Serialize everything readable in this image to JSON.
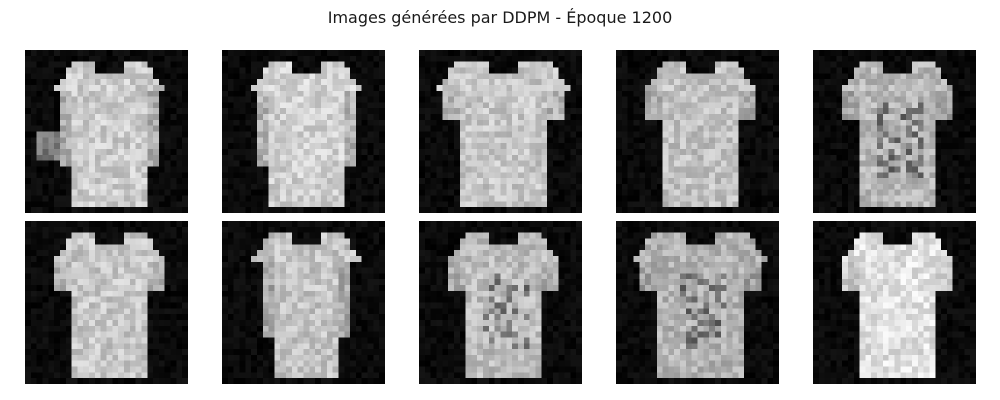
{
  "figure": {
    "title": "Images générées par DDPM - Époque 1200"
  },
  "grid": {
    "rows": 2,
    "cols": 5,
    "content": "generated-tshirt-samples"
  },
  "samples": [
    {
      "variant": "long-sleeve-left-arm-raised",
      "tone": 0.8
    },
    {
      "variant": "long-sleeve",
      "tone": 0.82
    },
    {
      "variant": "short-sleeve-wide",
      "tone": 0.78
    },
    {
      "variant": "short-sleeve",
      "tone": 0.76
    },
    {
      "variant": "short-sleeve-dark-print",
      "tone": 0.72
    },
    {
      "variant": "short-sleeve",
      "tone": 0.78
    },
    {
      "variant": "long-sleeve-slim",
      "tone": 0.77
    },
    {
      "variant": "short-sleeve-print",
      "tone": 0.74
    },
    {
      "variant": "wide-shoulder-dark-print",
      "tone": 0.7
    },
    {
      "variant": "short-sleeve-bright",
      "tone": 0.88
    }
  ]
}
